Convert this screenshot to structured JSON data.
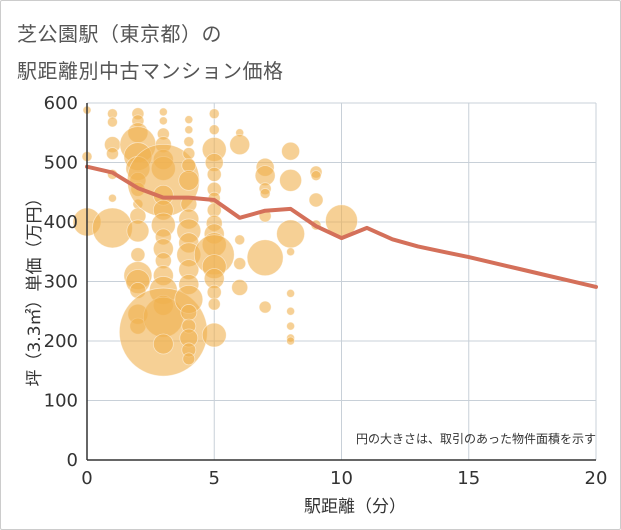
{
  "title_line1": "芝公園駅（東京都）の",
  "title_line2": "駅距離別中古マンション価格",
  "chart_data": {
    "type": "scatter",
    "xlabel": "駅距離（分）",
    "ylabel": "坪（3.3㎡）単価（万円）",
    "xlim": [
      0,
      20
    ],
    "ylim": [
      0,
      600
    ],
    "xticks": [
      0,
      5,
      10,
      15,
      20
    ],
    "yticks": [
      0,
      100,
      200,
      300,
      400,
      500,
      600
    ],
    "grid": true,
    "note": "円の大きさは、取引のあった物件面積を示す",
    "colors": {
      "bubble": "#f0b04f",
      "line": "#d4705a",
      "grid": "#c8d0d8",
      "axis": "#333333"
    },
    "line_series": {
      "x": [
        0,
        1,
        2,
        3,
        4,
        5,
        6,
        7,
        8,
        9,
        10,
        11,
        12,
        13,
        14,
        15,
        16,
        17,
        18,
        19,
        20
      ],
      "y": [
        493,
        483,
        457,
        441,
        441,
        437,
        407,
        419,
        422,
        393,
        373,
        390,
        371,
        359,
        350,
        341,
        331,
        321,
        311,
        301,
        291
      ]
    },
    "bubbles": [
      {
        "x": 0,
        "y": 588,
        "s": 4
      },
      {
        "x": 0,
        "y": 510,
        "s": 5
      },
      {
        "x": 0,
        "y": 400,
        "s": 14
      },
      {
        "x": 1,
        "y": 582,
        "s": 5
      },
      {
        "x": 1,
        "y": 568,
        "s": 5
      },
      {
        "x": 1,
        "y": 530,
        "s": 8
      },
      {
        "x": 1,
        "y": 515,
        "s": 6
      },
      {
        "x": 1,
        "y": 480,
        "s": 5
      },
      {
        "x": 1,
        "y": 440,
        "s": 4
      },
      {
        "x": 1,
        "y": 390,
        "s": 20
      },
      {
        "x": 2,
        "y": 582,
        "s": 6
      },
      {
        "x": 2,
        "y": 570,
        "s": 6
      },
      {
        "x": 2,
        "y": 550,
        "s": 10
      },
      {
        "x": 2,
        "y": 530,
        "s": 18
      },
      {
        "x": 2,
        "y": 510,
        "s": 14
      },
      {
        "x": 2,
        "y": 490,
        "s": 12
      },
      {
        "x": 2,
        "y": 470,
        "s": 8
      },
      {
        "x": 2,
        "y": 455,
        "s": 7
      },
      {
        "x": 2,
        "y": 430,
        "s": 5
      },
      {
        "x": 2,
        "y": 410,
        "s": 8
      },
      {
        "x": 2,
        "y": 385,
        "s": 11
      },
      {
        "x": 2,
        "y": 345,
        "s": 7
      },
      {
        "x": 2,
        "y": 310,
        "s": 14
      },
      {
        "x": 2,
        "y": 300,
        "s": 12
      },
      {
        "x": 2,
        "y": 285,
        "s": 8
      },
      {
        "x": 2,
        "y": 245,
        "s": 10
      },
      {
        "x": 2,
        "y": 225,
        "s": 8
      },
      {
        "x": 3,
        "y": 585,
        "s": 4
      },
      {
        "x": 3,
        "y": 570,
        "s": 4
      },
      {
        "x": 3,
        "y": 548,
        "s": 6
      },
      {
        "x": 3,
        "y": 530,
        "s": 8
      },
      {
        "x": 3,
        "y": 505,
        "s": 10
      },
      {
        "x": 3,
        "y": 490,
        "s": 12
      },
      {
        "x": 3,
        "y": 470,
        "s": 36
      },
      {
        "x": 3,
        "y": 445,
        "s": 10
      },
      {
        "x": 3,
        "y": 420,
        "s": 10
      },
      {
        "x": 3,
        "y": 395,
        "s": 12
      },
      {
        "x": 3,
        "y": 375,
        "s": 8
      },
      {
        "x": 3,
        "y": 355,
        "s": 10
      },
      {
        "x": 3,
        "y": 335,
        "s": 8
      },
      {
        "x": 3,
        "y": 310,
        "s": 10
      },
      {
        "x": 3,
        "y": 285,
        "s": 14
      },
      {
        "x": 3,
        "y": 260,
        "s": 10
      },
      {
        "x": 3,
        "y": 240,
        "s": 20
      },
      {
        "x": 3,
        "y": 215,
        "s": 44
      },
      {
        "x": 3,
        "y": 195,
        "s": 10
      },
      {
        "x": 4,
        "y": 572,
        "s": 4
      },
      {
        "x": 4,
        "y": 555,
        "s": 4
      },
      {
        "x": 4,
        "y": 535,
        "s": 5
      },
      {
        "x": 4,
        "y": 515,
        "s": 6
      },
      {
        "x": 4,
        "y": 495,
        "s": 7
      },
      {
        "x": 4,
        "y": 470,
        "s": 10
      },
      {
        "x": 4,
        "y": 430,
        "s": 8
      },
      {
        "x": 4,
        "y": 405,
        "s": 10
      },
      {
        "x": 4,
        "y": 385,
        "s": 12
      },
      {
        "x": 4,
        "y": 365,
        "s": 10
      },
      {
        "x": 4,
        "y": 345,
        "s": 12
      },
      {
        "x": 4,
        "y": 320,
        "s": 10
      },
      {
        "x": 4,
        "y": 295,
        "s": 10
      },
      {
        "x": 4,
        "y": 270,
        "s": 14
      },
      {
        "x": 4,
        "y": 248,
        "s": 8
      },
      {
        "x": 4,
        "y": 225,
        "s": 7
      },
      {
        "x": 4,
        "y": 205,
        "s": 9
      },
      {
        "x": 4,
        "y": 185,
        "s": 7
      },
      {
        "x": 4,
        "y": 170,
        "s": 6
      },
      {
        "x": 5,
        "y": 582,
        "s": 5
      },
      {
        "x": 5,
        "y": 555,
        "s": 5
      },
      {
        "x": 5,
        "y": 522,
        "s": 12
      },
      {
        "x": 5,
        "y": 500,
        "s": 9
      },
      {
        "x": 5,
        "y": 480,
        "s": 7
      },
      {
        "x": 5,
        "y": 455,
        "s": 7
      },
      {
        "x": 5,
        "y": 440,
        "s": 6
      },
      {
        "x": 5,
        "y": 420,
        "s": 7
      },
      {
        "x": 5,
        "y": 398,
        "s": 8
      },
      {
        "x": 5,
        "y": 380,
        "s": 10
      },
      {
        "x": 5,
        "y": 362,
        "s": 12
      },
      {
        "x": 5,
        "y": 345,
        "s": 20
      },
      {
        "x": 5,
        "y": 325,
        "s": 12
      },
      {
        "x": 5,
        "y": 305,
        "s": 10
      },
      {
        "x": 5,
        "y": 282,
        "s": 7
      },
      {
        "x": 5,
        "y": 262,
        "s": 6
      },
      {
        "x": 5,
        "y": 210,
        "s": 12
      },
      {
        "x": 6,
        "y": 550,
        "s": 4
      },
      {
        "x": 6,
        "y": 530,
        "s": 10
      },
      {
        "x": 6,
        "y": 370,
        "s": 5
      },
      {
        "x": 6,
        "y": 330,
        "s": 6
      },
      {
        "x": 6,
        "y": 290,
        "s": 8
      },
      {
        "x": 7,
        "y": 492,
        "s": 9
      },
      {
        "x": 7,
        "y": 478,
        "s": 10
      },
      {
        "x": 7,
        "y": 456,
        "s": 6
      },
      {
        "x": 7,
        "y": 448,
        "s": 5
      },
      {
        "x": 7,
        "y": 410,
        "s": 6
      },
      {
        "x": 7,
        "y": 340,
        "s": 18
      },
      {
        "x": 7,
        "y": 257,
        "s": 6
      },
      {
        "x": 8,
        "y": 519,
        "s": 9
      },
      {
        "x": 8,
        "y": 470,
        "s": 11
      },
      {
        "x": 8,
        "y": 380,
        "s": 14
      },
      {
        "x": 8,
        "y": 350,
        "s": 4
      },
      {
        "x": 8,
        "y": 280,
        "s": 4
      },
      {
        "x": 8,
        "y": 250,
        "s": 4
      },
      {
        "x": 8,
        "y": 225,
        "s": 4
      },
      {
        "x": 8,
        "y": 205,
        "s": 4
      },
      {
        "x": 8,
        "y": 200,
        "s": 4
      },
      {
        "x": 9,
        "y": 484,
        "s": 6
      },
      {
        "x": 9,
        "y": 478,
        "s": 5
      },
      {
        "x": 9,
        "y": 437,
        "s": 7
      },
      {
        "x": 9,
        "y": 395,
        "s": 5
      },
      {
        "x": 10,
        "y": 402,
        "s": 16
      }
    ]
  }
}
